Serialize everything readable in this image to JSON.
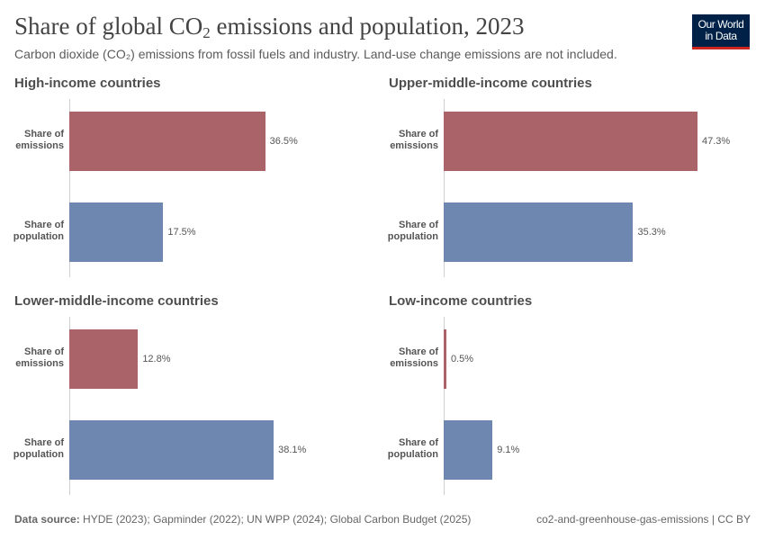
{
  "header": {
    "title_main": "Share of global CO",
    "title_sub": "2",
    "title_rest": " emissions and population, 2023",
    "subtitle": "Carbon dioxide (CO₂) emissions from fossil fuels and industry. Land-use change emissions are not included.",
    "logo_line1": "Our World",
    "logo_line2": "in Data"
  },
  "colors": {
    "emissions": "#ab636a",
    "population": "#6d87b0"
  },
  "chart_data": {
    "type": "bar",
    "orientation": "horizontal",
    "unit": "%",
    "categories": [
      "Share of emissions",
      "Share of population"
    ],
    "xlim": [
      0,
      47.3
    ],
    "panels": [
      {
        "title": "High-income countries",
        "values": [
          36.5,
          17.5
        ],
        "labels": [
          "36.5%",
          "17.5%"
        ]
      },
      {
        "title": "Upper-middle-income countries",
        "values": [
          47.3,
          35.3
        ],
        "labels": [
          "47.3%",
          "35.3%"
        ]
      },
      {
        "title": "Lower-middle-income countries",
        "values": [
          12.8,
          38.1
        ],
        "labels": [
          "12.8%",
          "38.1%"
        ]
      },
      {
        "title": "Low-income countries",
        "values": [
          0.5,
          9.1
        ],
        "labels": [
          "0.5%",
          "9.1%"
        ]
      }
    ]
  },
  "footer": {
    "source_label": "Data source:",
    "source": " HYDE (2023); Gapminder (2022); UN WPP (2024); Global Carbon Budget (2025)",
    "right": "co2-and-greenhouse-gas-emissions | CC BY"
  }
}
